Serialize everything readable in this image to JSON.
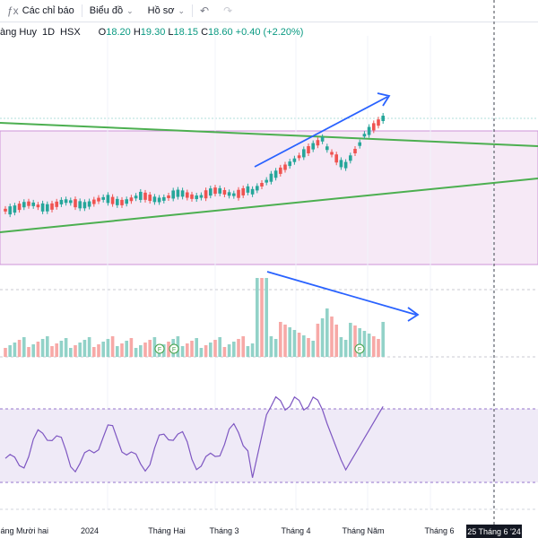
{
  "toolbar": {
    "indicators_label": "Các chỉ báo",
    "chart_type_label": "Biểu đồ",
    "profile_label": "Hồ sơ"
  },
  "legend": {
    "symbol": "àng Huy",
    "interval": "1D",
    "exchange": "HSX",
    "open_label": "O",
    "open": "18.20",
    "high_label": "H",
    "high": "19.30",
    "low_label": "L",
    "low": "18.15",
    "close_label": "C",
    "close": "18.60",
    "change": "+0.40 (+2.20%)"
  },
  "x_axis_labels": [
    "Tháng Mười hai",
    "2024",
    "Tháng Hai",
    "Tháng 3",
    "Tháng 4",
    "Tháng Năm",
    "Tháng 6"
  ],
  "crosshair_date": "25 Tháng 6 '24",
  "colors": {
    "up": "#26a69a",
    "down": "#ef5350",
    "trendline": "#4caf50",
    "arrow": "#2962ff",
    "channel_fill": "#f3e5f5",
    "channel_border": "#ce93d8",
    "rsi_line": "#7e57c2",
    "rsi_band": "#ede7f6",
    "volume_up": "#92d2c8",
    "volume_down": "#f7a9a7"
  },
  "chart_data": {
    "type": "candlestick",
    "rsi_marker_label": "F"
  }
}
